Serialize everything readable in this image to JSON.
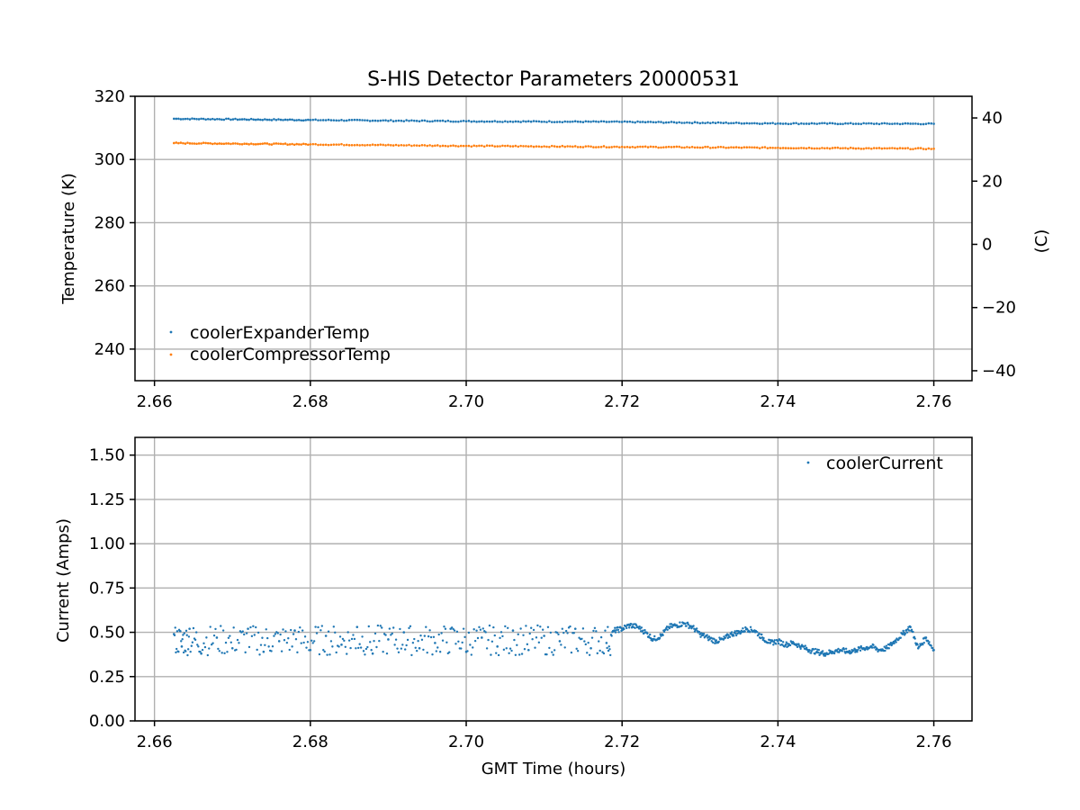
{
  "chart_data": [
    {
      "type": "scatter",
      "title": "S-HIS Detector Parameters 20000531",
      "xlabel": "",
      "ylabel": "Temperature (K)",
      "ylabel_right": "(C)",
      "xlim": [
        2.6575,
        2.7649
      ],
      "ylim": [
        230,
        320
      ],
      "ylim_right": [
        -43.15,
        46.85
      ],
      "xticks": [
        "2.66",
        "2.68",
        "2.70",
        "2.72",
        "2.74",
        "2.76"
      ],
      "xtick_values": [
        2.66,
        2.68,
        2.7,
        2.72,
        2.74,
        2.76
      ],
      "yticks": [
        "240",
        "260",
        "280",
        "300",
        "320"
      ],
      "ytick_values": [
        240,
        260,
        280,
        300,
        320
      ],
      "yticks_right": [
        "−40",
        "−20",
        "0",
        "20",
        "40"
      ],
      "ytick_values_right": [
        -40,
        -20,
        0,
        20,
        40
      ],
      "grid": true,
      "legend_position": "lower-left",
      "series": [
        {
          "name": "coolerExpanderTemp",
          "color": "#1f77b4",
          "x": [
            2.6625,
            2.68,
            2.7,
            2.72,
            2.74,
            2.76
          ],
          "y": [
            312.9,
            312.5,
            312.1,
            311.9,
            311.4,
            311.3
          ]
        },
        {
          "name": "coolerCompressorTemp",
          "color": "#ff7f0e",
          "x": [
            2.6625,
            2.68,
            2.7,
            2.72,
            2.74,
            2.76
          ],
          "y": [
            305.2,
            304.8,
            304.3,
            304.0,
            303.7,
            303.4
          ]
        }
      ]
    },
    {
      "type": "scatter",
      "title": "",
      "xlabel": "GMT Time (hours)",
      "ylabel": "Current (Amps)",
      "xlim": [
        2.6575,
        2.7649
      ],
      "ylim": [
        0.0,
        1.6
      ],
      "xticks": [
        "2.66",
        "2.68",
        "2.70",
        "2.72",
        "2.74",
        "2.76"
      ],
      "xtick_values": [
        2.66,
        2.68,
        2.7,
        2.72,
        2.74,
        2.76
      ],
      "yticks": [
        "0.00",
        "0.25",
        "0.50",
        "0.75",
        "1.00",
        "1.25",
        "1.50"
      ],
      "ytick_values": [
        0.0,
        0.25,
        0.5,
        0.75,
        1.0,
        1.25,
        1.5
      ],
      "grid": true,
      "legend_position": "upper-right",
      "series": [
        {
          "name": "coolerCurrent",
          "color": "#1f77b4",
          "x": [
            2.6625,
            2.6635,
            2.6645,
            2.666,
            2.668,
            2.67,
            2.672,
            2.674,
            2.676,
            2.678,
            2.68,
            2.682,
            2.684,
            2.686,
            2.688,
            2.69,
            2.692,
            2.694,
            2.696,
            2.698,
            2.7,
            2.702,
            2.704,
            2.706,
            2.708,
            2.71,
            2.712,
            2.714,
            2.716,
            2.718,
            2.719,
            2.72,
            2.721,
            2.722,
            2.723,
            2.724,
            2.725,
            2.726,
            2.727,
            2.728,
            2.729,
            2.73,
            2.731,
            2.732,
            2.733,
            2.734,
            2.735,
            2.736,
            2.737,
            2.738,
            2.739,
            2.74,
            2.741,
            2.742,
            2.743,
            2.744,
            2.745,
            2.746,
            2.747,
            2.748,
            2.749,
            2.75,
            2.751,
            2.752,
            2.753,
            2.754,
            2.755,
            2.756,
            2.757,
            2.758,
            2.759,
            2.76
          ],
          "y": [
            0.49,
            0.42,
            0.52,
            0.38,
            0.47,
            0.41,
            0.52,
            0.39,
            0.45,
            0.51,
            0.4,
            0.48,
            0.43,
            0.53,
            0.38,
            0.46,
            0.5,
            0.41,
            0.44,
            0.52,
            0.39,
            0.47,
            0.42,
            0.51,
            0.4,
            0.48,
            0.45,
            0.52,
            0.41,
            0.44,
            0.51,
            0.52,
            0.54,
            0.53,
            0.5,
            0.46,
            0.48,
            0.53,
            0.54,
            0.55,
            0.53,
            0.49,
            0.47,
            0.45,
            0.46,
            0.49,
            0.5,
            0.52,
            0.51,
            0.47,
            0.44,
            0.45,
            0.43,
            0.44,
            0.42,
            0.4,
            0.39,
            0.38,
            0.39,
            0.4,
            0.39,
            0.4,
            0.41,
            0.42,
            0.4,
            0.41,
            0.45,
            0.49,
            0.53,
            0.41,
            0.47,
            0.4
          ]
        }
      ]
    }
  ]
}
